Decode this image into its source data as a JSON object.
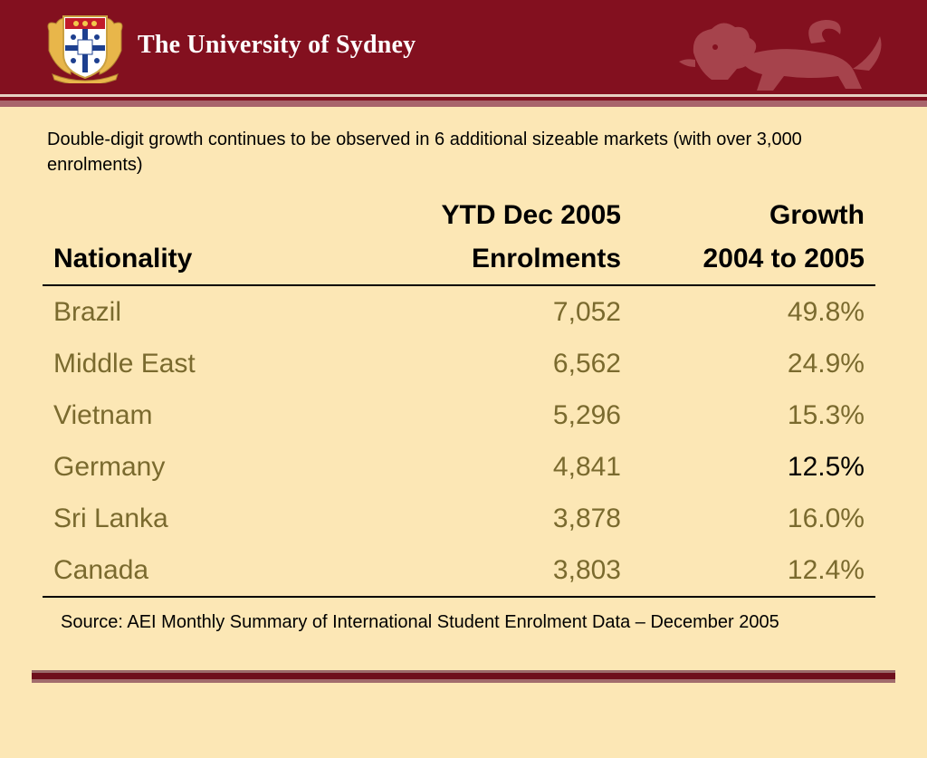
{
  "header": {
    "brand": "The University of Sydney",
    "crest_icon": "university-crest-icon",
    "lion_icon": "heraldic-lion-icon",
    "colors": {
      "band": "#83101f",
      "background": "#fce7b5",
      "row_text": "#7a6a2e"
    }
  },
  "intro": "Double-digit growth continues to be observed in 6 additional sizeable markets (with over 3,000 enrolments)",
  "table": {
    "headers": {
      "col1": [
        "",
        "Nationality"
      ],
      "col2": [
        "YTD Dec 2005",
        "Enrolments"
      ],
      "col3": [
        "Growth",
        "2004 to 2005"
      ]
    },
    "rows": [
      {
        "nationality": "Brazil",
        "enrolments": "7,052",
        "growth": "49.8%"
      },
      {
        "nationality": "Middle East",
        "enrolments": "6,562",
        "growth": "24.9%"
      },
      {
        "nationality": "Vietnam",
        "enrolments": "5,296",
        "growth": "15.3%"
      },
      {
        "nationality": "Germany",
        "enrolments": "4,841",
        "growth": "12.5%"
      },
      {
        "nationality": "Sri Lanka",
        "enrolments": "3,878",
        "growth": "16.0%"
      },
      {
        "nationality": "Canada",
        "enrolments": "3,803",
        "growth": "12.4%"
      }
    ]
  },
  "source": "Source: AEI Monthly Summary of International Student Enrolment Data – December 2005"
}
